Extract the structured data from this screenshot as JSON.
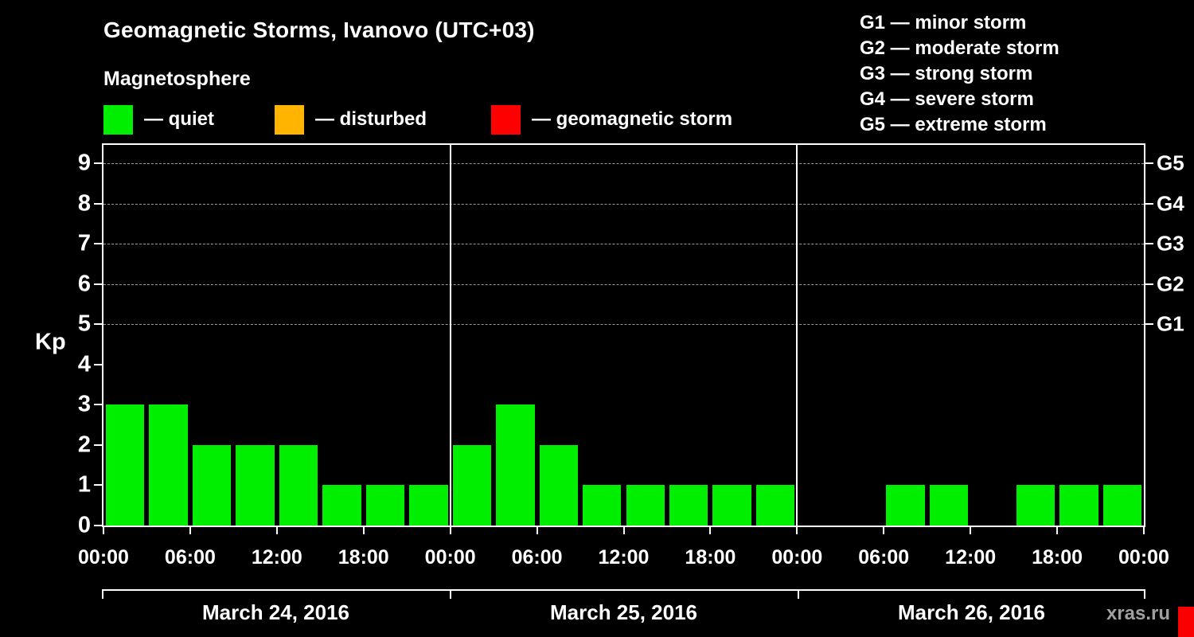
{
  "header": {
    "title": "Geomagnetic Storms, Ivanovo (UTC+03)",
    "subtitle": "Magnetosphere"
  },
  "legend": {
    "items": [
      {
        "name": "quiet",
        "color": "#00ee00",
        "label": "— quiet"
      },
      {
        "name": "disturbed",
        "color": "#ffb400",
        "label": "— disturbed"
      },
      {
        "name": "storm",
        "color": "#ff0000",
        "label": "— geomagnetic storm"
      }
    ]
  },
  "g_scale_legend": {
    "lines": [
      "G1 — minor storm",
      "G2 — moderate storm",
      "G3 — strong storm",
      "G4 — severe storm",
      "G5 — extreme storm"
    ]
  },
  "watermark": "xras.ru",
  "chart_data": {
    "type": "bar",
    "ylabel": "Kp",
    "ylim": [
      0,
      9
    ],
    "yticks": [
      0,
      1,
      2,
      3,
      4,
      5,
      6,
      7,
      8,
      9
    ],
    "grid_levels": [
      5,
      6,
      7,
      8,
      9
    ],
    "right_axis": [
      {
        "value": 5,
        "label": "G1"
      },
      {
        "value": 6,
        "label": "G2"
      },
      {
        "value": 7,
        "label": "G3"
      },
      {
        "value": 8,
        "label": "G4"
      },
      {
        "value": 9,
        "label": "G5"
      }
    ],
    "x_tick_labels_pattern": [
      "00:00",
      "06:00",
      "12:00",
      "18:00"
    ],
    "bar_interval_hours": 3,
    "bar_color": "#00ee00",
    "grid": true,
    "days": [
      {
        "date": "March 24, 2016",
        "values": [
          3,
          3,
          2,
          2,
          2,
          1,
          1,
          1
        ]
      },
      {
        "date": "March 25, 2016",
        "values": [
          2,
          3,
          2,
          1,
          1,
          1,
          1,
          1
        ]
      },
      {
        "date": "March 26, 2016",
        "values": [
          0,
          0,
          1,
          1,
          0,
          1,
          1,
          1
        ]
      }
    ]
  }
}
